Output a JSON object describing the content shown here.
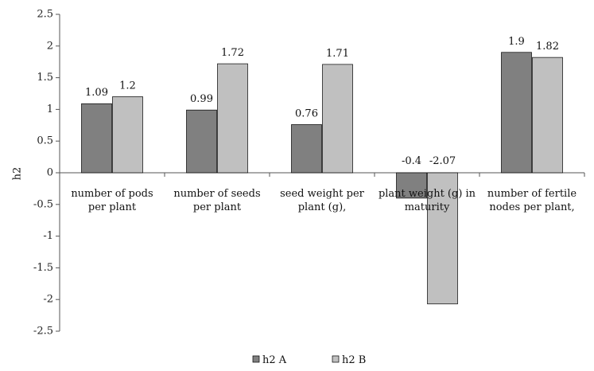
{
  "chart_data": {
    "type": "bar",
    "ylabel": "h2",
    "ylim": [
      -2.5,
      2.5
    ],
    "ytick_step": 0.5,
    "yticks": [
      "2.5",
      "2",
      "1.5",
      "1",
      "0.5",
      "0",
      "-0.5",
      "-1",
      "-1.5",
      "-2",
      "-2.5"
    ],
    "grid": false,
    "legend_position": "bottom-center",
    "categories": [
      [
        "number of pods",
        "per plant"
      ],
      [
        "number of seeds",
        "per plant"
      ],
      [
        "seed weight per",
        "plant (g),"
      ],
      [
        "plant weight (g) in",
        "maturity"
      ],
      [
        "number of fertile",
        "nodes per plant,"
      ]
    ],
    "series": [
      {
        "name": "h2 A",
        "color": "#808080",
        "values": [
          1.09,
          0.99,
          0.76,
          -0.4,
          1.9
        ],
        "labels": [
          "1.09",
          "0.99",
          "0.76",
          "-0.4",
          "1.9"
        ]
      },
      {
        "name": "h2 B",
        "color": "#c0c0c0",
        "values": [
          1.2,
          1.72,
          1.71,
          -2.07,
          1.82
        ],
        "labels": [
          "1.2",
          "1.72",
          "1.71",
          "-2.07",
          "1.82"
        ]
      }
    ]
  }
}
